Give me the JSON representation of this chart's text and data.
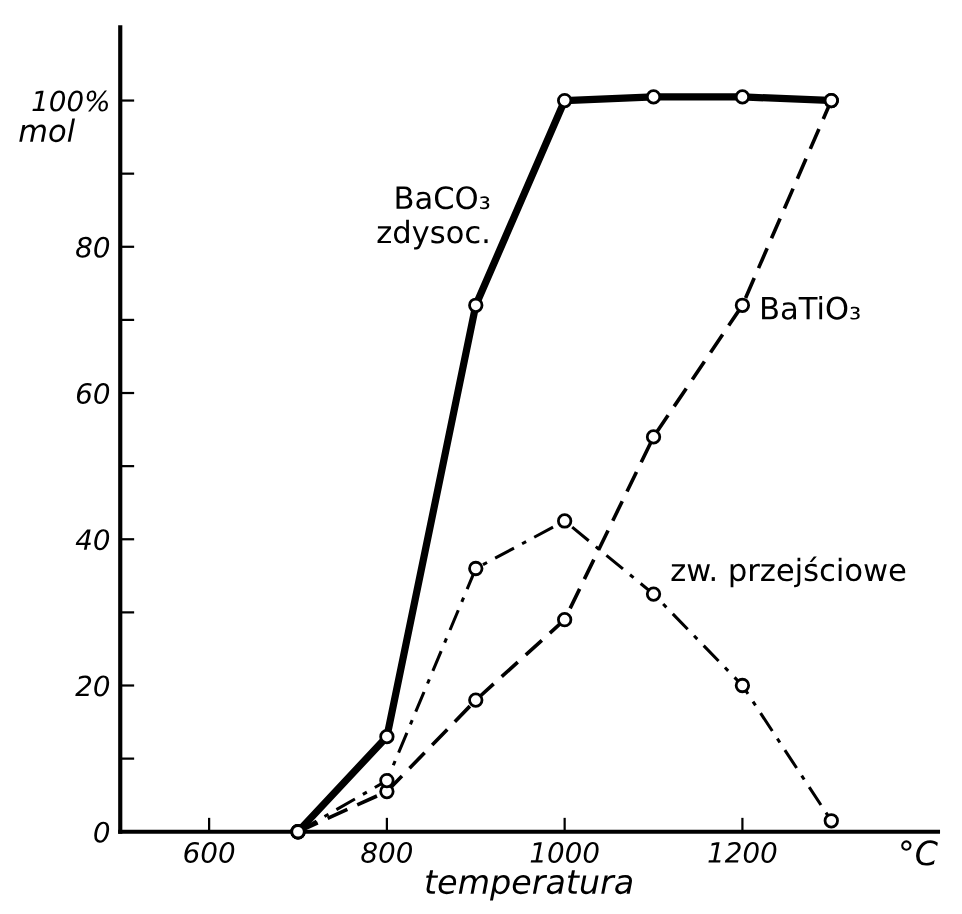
{
  "chart_data": {
    "type": "line",
    "xlabel": "temperatura",
    "ylabel": "mol",
    "x": [
      700,
      800,
      900,
      1000,
      1100,
      1200,
      1300
    ],
    "series": [
      {
        "name": "BaCO₃\nzdysoc.",
        "color": "#000000",
        "line_style": "solid",
        "values": [
          0,
          13,
          72,
          100,
          100.5,
          100.5,
          100
        ]
      },
      {
        "name": "BaTiO₃",
        "color": "#000000",
        "line_style": "dashed",
        "values": [
          0,
          5.5,
          18,
          29,
          54,
          72,
          100
        ]
      },
      {
        "name": "zw. przejściowe",
        "color": "#000000",
        "line_style": "dashdot",
        "values": [
          0,
          7,
          36,
          42.5,
          32.5,
          20,
          1.5
        ]
      }
    ],
    "annotations": [
      "°C"
    ],
    "marker": "circle",
    "grid": false,
    "legend": false,
    "xlim": [
      500,
      1420
    ],
    "ylim": [
      0,
      110
    ],
    "xticks": [
      600,
      800,
      1000,
      1200
    ],
    "yticks": [
      0,
      {
        "value": 10,
        "label": null
      },
      20,
      {
        "value": 30,
        "label": null
      },
      40,
      {
        "value": 50,
        "label": null
      },
      60,
      {
        "value": 70,
        "label": null
      },
      80,
      {
        "value": 90,
        "label": null
      },
      {
        "value": 100,
        "label": "100%"
      }
    ]
  }
}
